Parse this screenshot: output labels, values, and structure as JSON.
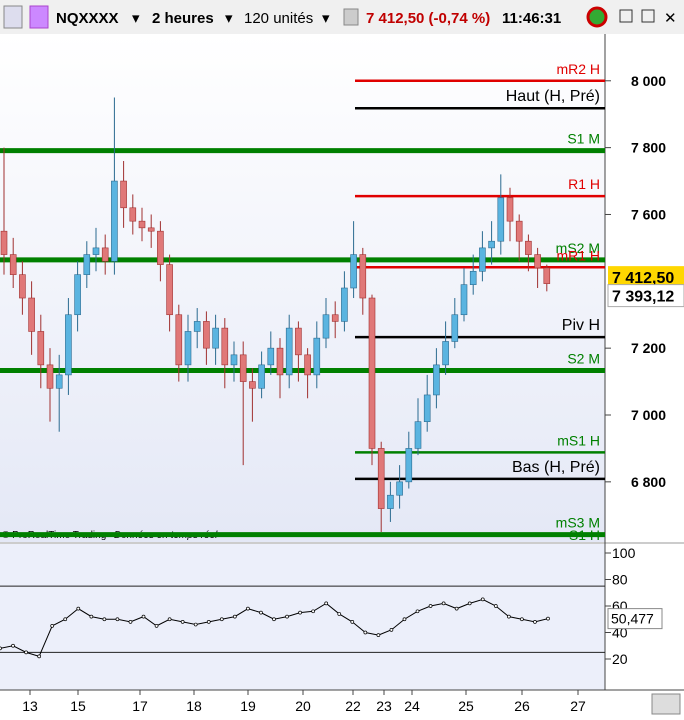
{
  "toolbar": {
    "symbol": "NQXXXX",
    "period": "2 heures",
    "units": "120 unités",
    "quote": "7 412,50 (-0,74 %)",
    "time": "11:46:31"
  },
  "chart_data": {
    "type": "candlestick",
    "open": [
      7550,
      7480,
      7420,
      7350,
      7250,
      7150,
      7080,
      7120,
      7300,
      7420,
      7480,
      7500,
      7460,
      7700,
      7620,
      7580,
      7560,
      7550,
      7450,
      7300,
      7150,
      7250,
      7280,
      7200,
      7260,
      7150,
      7180,
      7100,
      7080,
      7150,
      7200,
      7120,
      7260,
      7180,
      7120,
      7230,
      7300,
      7280,
      7380,
      7480,
      7350,
      6900,
      6720,
      6760,
      6800,
      6900,
      6980,
      7060,
      7150,
      7220,
      7300,
      7390,
      7430,
      7500,
      7520,
      7650,
      7580,
      7520,
      7480,
      7440
    ],
    "high": [
      7800,
      7530,
      7460,
      7400,
      7300,
      7200,
      7180,
      7350,
      7460,
      7520,
      7560,
      7540,
      7950,
      7760,
      7660,
      7620,
      7600,
      7580,
      7480,
      7330,
      7300,
      7320,
      7310,
      7300,
      7290,
      7220,
      7220,
      7140,
      7190,
      7250,
      7230,
      7300,
      7280,
      7200,
      7280,
      7350,
      7340,
      7430,
      7580,
      7500,
      7360,
      6920,
      6800,
      6850,
      6950,
      7050,
      7120,
      7200,
      7280,
      7350,
      7440,
      7480,
      7550,
      7580,
      7720,
      7680,
      7600,
      7540,
      7500,
      7450
    ],
    "low": [
      7420,
      7380,
      7300,
      7180,
      7080,
      6980,
      6950,
      7060,
      7250,
      7380,
      7430,
      7420,
      7420,
      7560,
      7540,
      7520,
      7500,
      7400,
      7250,
      7100,
      7100,
      7200,
      7150,
      7150,
      7080,
      7100,
      6850,
      6980,
      7050,
      7120,
      7050,
      7080,
      7100,
      7050,
      7080,
      7200,
      7230,
      7250,
      7350,
      7300,
      6850,
      6650,
      6680,
      6720,
      6780,
      6880,
      6950,
      7020,
      7120,
      7200,
      7280,
      7360,
      7400,
      7450,
      7480,
      7520,
      7460,
      7430,
      7380,
      7370
    ],
    "close": [
      7480,
      7420,
      7350,
      7250,
      7150,
      7080,
      7120,
      7300,
      7420,
      7480,
      7500,
      7460,
      7700,
      7620,
      7580,
      7560,
      7550,
      7450,
      7300,
      7150,
      7250,
      7280,
      7200,
      7260,
      7150,
      7180,
      7100,
      7080,
      7150,
      7200,
      7120,
      7260,
      7180,
      7120,
      7230,
      7300,
      7280,
      7380,
      7480,
      7350,
      6900,
      6720,
      6760,
      6800,
      6900,
      6980,
      7060,
      7150,
      7220,
      7300,
      7390,
      7430,
      7500,
      7520,
      7650,
      7580,
      7520,
      7480,
      7440,
      7393.12
    ],
    "up_color": "#5ab4e0",
    "down_color": "#e07878",
    "ylim": [
      6620,
      8140
    ],
    "yticks": [
      {
        "value": 8000,
        "label": "8 000"
      },
      {
        "value": 7800,
        "label": "7 800"
      },
      {
        "value": 7600,
        "label": "7 600"
      },
      {
        "value": 7200,
        "label": "7 200"
      },
      {
        "value": 7000,
        "label": "7 000"
      },
      {
        "value": 6800,
        "label": "6 800"
      }
    ],
    "levels": [
      {
        "name": "mR2 H",
        "value": 8000,
        "color": "#e00000",
        "partial": true
      },
      {
        "name": "Haut (H, Pré)",
        "value": 7918,
        "color": "#000000",
        "partial": true
      },
      {
        "name": "S1 M",
        "value": 7791,
        "color": "#008000",
        "partial": false
      },
      {
        "name": "R1 H",
        "value": 7655,
        "color": "#e00000",
        "partial": true
      },
      {
        "name": "mS2 M",
        "value": 7464,
        "color": "#008000",
        "partial": false
      },
      {
        "name": "mR1 H",
        "value": 7442,
        "color": "#e00000",
        "partial": true
      },
      {
        "name": "Piv H",
        "value": 7233,
        "color": "#000000",
        "partial": true
      },
      {
        "name": "S2 M",
        "value": 7133,
        "color": "#008000",
        "partial": false
      },
      {
        "name": "mS1 H",
        "value": 6888,
        "color": "#008000",
        "partial": true
      },
      {
        "name": "Bas (H, Pré)",
        "value": 6809,
        "color": "#000000",
        "partial": true
      },
      {
        "name": "mS3 M",
        "value": 6642,
        "color": "#008000",
        "partial": false
      }
    ],
    "extra_label": "S1 H",
    "last_price": {
      "value": 7412.5,
      "label": "7 412,50"
    },
    "close_price": {
      "value": 7393.12,
      "label": "7 393,12"
    },
    "dates": [
      "13",
      "15",
      "17",
      "18",
      "19",
      "20",
      "22",
      "23",
      "24",
      "25",
      "26",
      "27"
    ],
    "footer": "© ProRealTime Trading",
    "footer_note": "Données en temps réel"
  },
  "indicator": {
    "type": "line",
    "values": [
      28,
      30,
      25,
      22,
      45,
      50,
      58,
      52,
      50,
      50,
      48,
      52,
      45,
      50,
      48,
      46,
      48,
      50,
      52,
      58,
      55,
      50,
      52,
      55,
      56,
      62,
      54,
      48,
      40,
      38,
      42,
      50,
      56,
      60,
      62,
      58,
      62,
      65,
      60,
      52,
      50,
      48,
      50.477
    ],
    "ylim": [
      105,
      -2
    ],
    "yticks": [
      100,
      80,
      60,
      40,
      20
    ],
    "bands": [
      75,
      25
    ],
    "last": {
      "value": 50.477,
      "label": "50,477"
    }
  }
}
